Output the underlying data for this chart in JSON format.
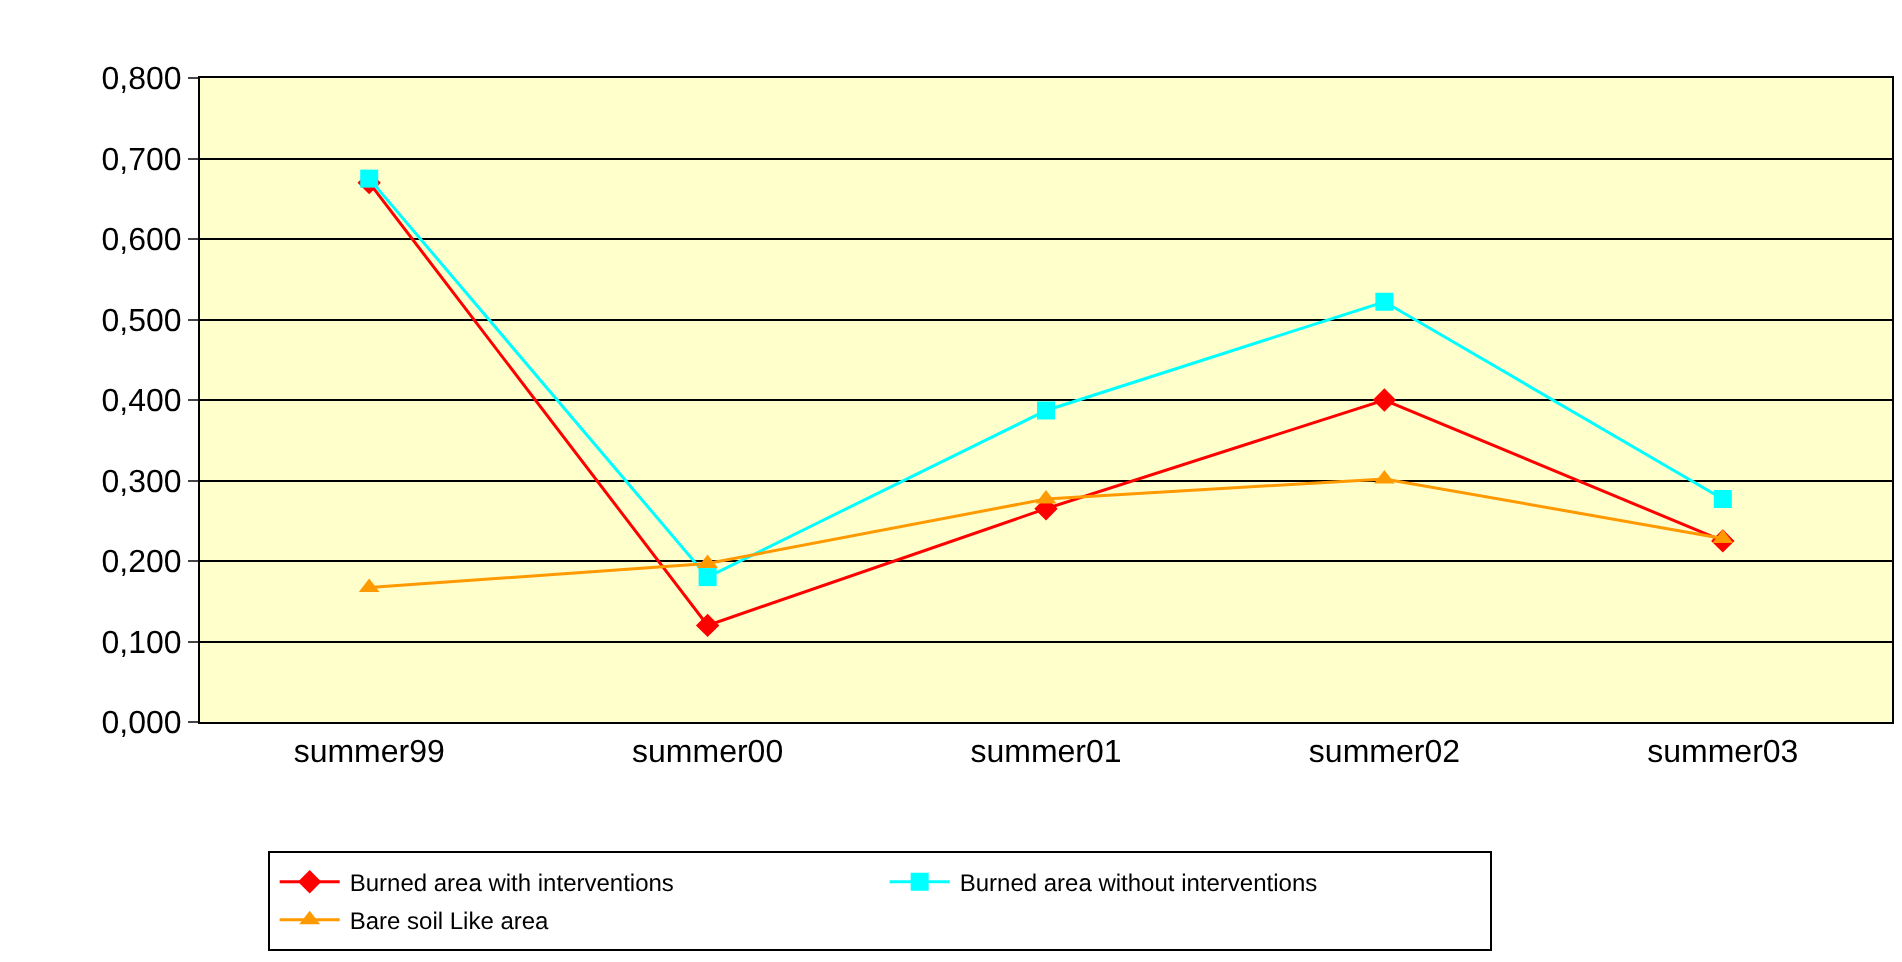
{
  "chart_data": {
    "type": "line",
    "categories": [
      "summer99",
      "summer00",
      "summer01",
      "summer02",
      "summer03"
    ],
    "series": [
      {
        "name": "Burned area with interventions",
        "color": "#ff0000",
        "marker": "diamond",
        "values": [
          0.67,
          0.12,
          0.265,
          0.4,
          0.225
        ]
      },
      {
        "name": "Burned area without interventions",
        "color": "#00ffff",
        "marker": "square",
        "values": [
          0.675,
          0.18,
          0.387,
          0.522,
          0.277
        ]
      },
      {
        "name": "Bare soil Like area",
        "color": "#ff9900",
        "marker": "triangle",
        "values": [
          0.167,
          0.197,
          0.277,
          0.302,
          0.228
        ]
      }
    ],
    "ylim": [
      0,
      0.8
    ],
    "yticks": [
      {
        "value": 0,
        "label": "0,000"
      },
      {
        "value": 0.1,
        "label": "0,100"
      },
      {
        "value": 0.2,
        "label": "0,200"
      },
      {
        "value": 0.3,
        "label": "0,300"
      },
      {
        "value": 0.4,
        "label": "0,400"
      },
      {
        "value": 0.5,
        "label": "0,500"
      },
      {
        "value": 0.6,
        "label": "0,600"
      },
      {
        "value": 0.7,
        "label": "0,700"
      },
      {
        "value": 0.8,
        "label": "0,800"
      }
    ],
    "grid": "y",
    "legend": "bottom",
    "line_style": "solid"
  }
}
